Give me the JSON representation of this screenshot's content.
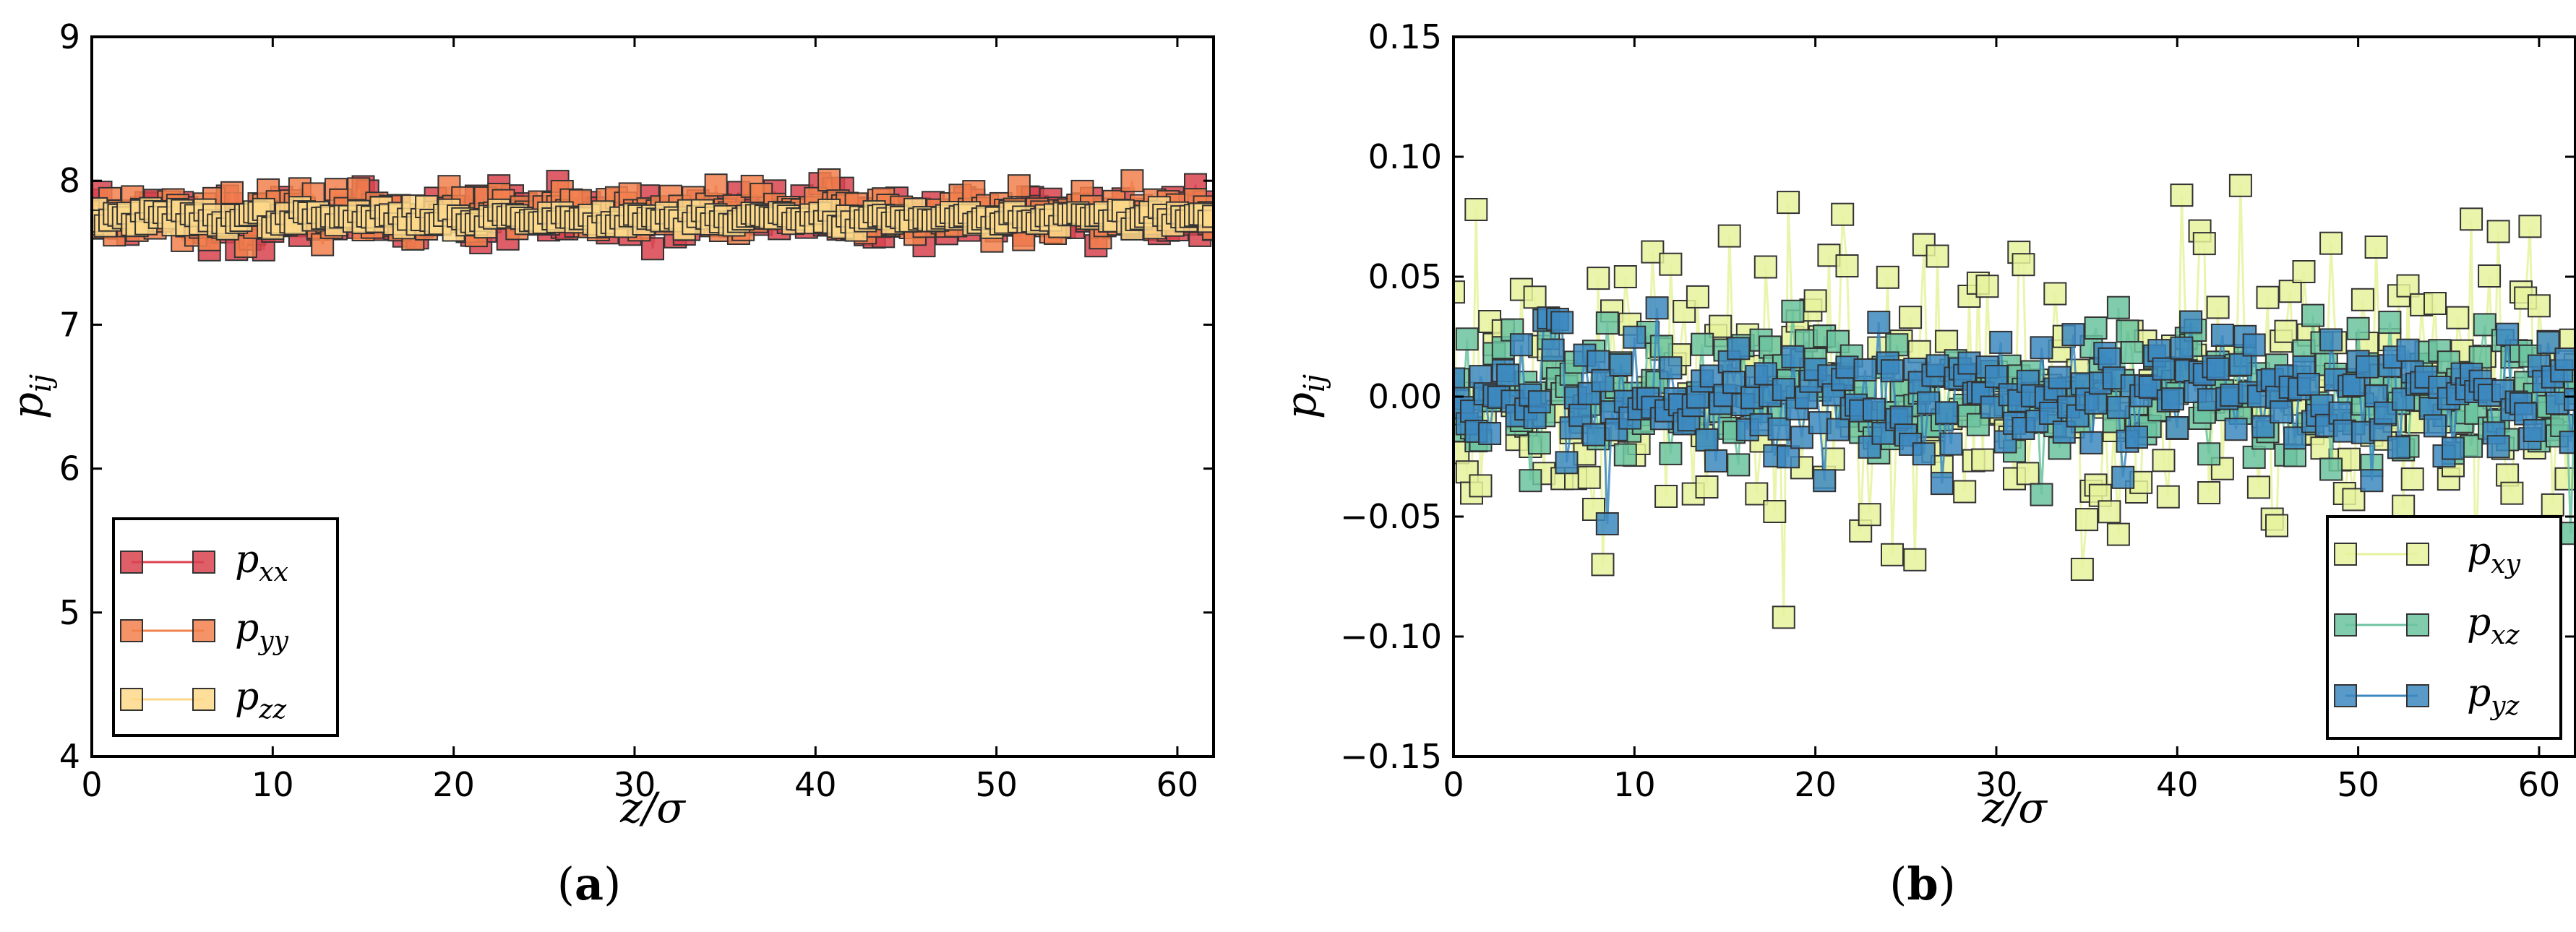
{
  "chart_data": [
    {
      "panel": "a",
      "caption_letter": "a",
      "type": "line",
      "xlabel": "z/σ",
      "ylabel": "p",
      "ylabel_sub": "ij",
      "xlim": [
        0,
        62
      ],
      "ylim": [
        4,
        9
      ],
      "xticks": [
        0,
        10,
        20,
        30,
        40,
        50,
        60
      ],
      "yticks": [
        4,
        5,
        6,
        7,
        8,
        9
      ],
      "xtick_labels": [
        "0",
        "10",
        "20",
        "30",
        "40",
        "50",
        "60"
      ],
      "ytick_labels": [
        "4",
        "5",
        "6",
        "7",
        "8",
        "9"
      ],
      "legend_position": "lower-left",
      "series": [
        {
          "name": "p",
          "sub": "xx",
          "color": "#d9434f",
          "base": 7.75,
          "noise": 0.09,
          "seed": 11,
          "spikes": [
            [
              0.5,
              7.92
            ],
            [
              6.5,
              7.52
            ],
            [
              9.5,
              7.52
            ],
            [
              40.2,
              7.98
            ],
            [
              61.2,
              7.62
            ]
          ]
        },
        {
          "name": "p",
          "sub": "yy",
          "color": "#f2804e",
          "base": 7.76,
          "noise": 0.08,
          "seed": 23,
          "spikes": [
            [
              34.5,
              7.97
            ],
            [
              57.5,
              8.0
            ],
            [
              13.5,
              7.94
            ]
          ]
        },
        {
          "name": "p",
          "sub": "zz",
          "color": "#fdd889",
          "base": 7.74,
          "noise": 0.035,
          "seed": 37,
          "spikes": []
        }
      ]
    },
    {
      "panel": "b",
      "caption_letter": "b",
      "type": "line",
      "xlabel": "z/σ",
      "ylabel": "p",
      "ylabel_sub": "ij",
      "xlim": [
        0,
        62
      ],
      "ylim": [
        -0.15,
        0.15
      ],
      "xticks": [
        0,
        10,
        20,
        30,
        40,
        50,
        60
      ],
      "yticks": [
        -0.15,
        -0.1,
        -0.05,
        0.0,
        0.05,
        0.1,
        0.15
      ],
      "xtick_labels": [
        "0",
        "10",
        "20",
        "30",
        "40",
        "50",
        "60"
      ],
      "ytick_labels": [
        "−0.15",
        "−0.10",
        "−0.05",
        "0.00",
        "0.05",
        "0.10",
        "0.15"
      ],
      "legend_position": "lower-right",
      "series": [
        {
          "name": "p",
          "sub": "xy",
          "color": "#e6f29c",
          "base": 0.0,
          "noise": 0.032,
          "seed": 51,
          "spikes": [
            [
              1.2,
              0.078
            ],
            [
              18.2,
              -0.092
            ],
            [
              18.5,
              0.081
            ],
            [
              21.5,
              0.076
            ],
            [
              40.2,
              0.084
            ],
            [
              43.5,
              0.088
            ],
            [
              8.2,
              -0.07
            ],
            [
              34.8,
              -0.072
            ],
            [
              56.2,
              0.074
            ],
            [
              59.5,
              0.071
            ],
            [
              25.5,
              -0.068
            ],
            [
              15.3,
              0.067
            ],
            [
              22.5,
              -0.056
            ],
            [
              9.5,
              0.05
            ]
          ]
        },
        {
          "name": "p",
          "sub": "xz",
          "color": "#6cc3a0",
          "base": 0.0,
          "noise": 0.014,
          "seed": 67,
          "spikes": [
            [
              61.8,
              -0.057
            ],
            [
              4.2,
              -0.035
            ]
          ]
        },
        {
          "name": "p",
          "sub": "yz",
          "color": "#3c88c0",
          "base": 0.0,
          "noise": 0.013,
          "seed": 83,
          "spikes": [
            [
              8.5,
              -0.053
            ],
            [
              11.2,
              0.037
            ],
            [
              20.5,
              -0.035
            ],
            [
              23.5,
              0.031
            ],
            [
              58.2,
              0.026
            ]
          ]
        }
      ]
    }
  ]
}
